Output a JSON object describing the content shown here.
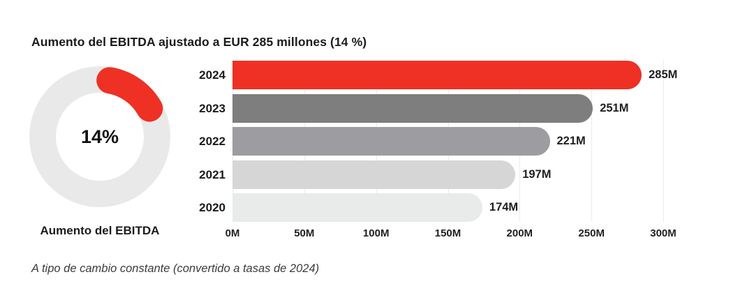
{
  "page": {
    "title": "Aumento del EBITDA ajustado a EUR 285 millones (14 %)",
    "footnote": "A tipo de cambio constante (convertido a tasas de 2024)"
  },
  "donut": {
    "percent_value": 14,
    "percent_label": "14%",
    "caption": "Aumento del EBITDA",
    "accent_color": "#EE3124",
    "track_color": "#E9E9E9"
  },
  "chart_data": {
    "type": "bar",
    "orientation": "horizontal",
    "title": "Aumento del EBITDA ajustado a EUR 285 millones (14 %)",
    "categories": [
      "2024",
      "2023",
      "2022",
      "2021",
      "2020"
    ],
    "values": [
      285,
      251,
      221,
      197,
      174
    ],
    "value_labels": [
      "285M",
      "251M",
      "221M",
      "197M",
      "174M"
    ],
    "bar_colors": [
      "#EE3124",
      "#7E7E7E",
      "#9C9CA1",
      "#D6D6D6",
      "#E9EBEA"
    ],
    "x_ticks": [
      "0M",
      "50M",
      "100M",
      "150M",
      "200M",
      "250M",
      "300M"
    ],
    "x_tick_values": [
      0,
      50,
      100,
      150,
      200,
      250,
      300
    ],
    "xlim": [
      0,
      300
    ],
    "grid": true,
    "legend": "none",
    "unit": "EUR millions"
  }
}
